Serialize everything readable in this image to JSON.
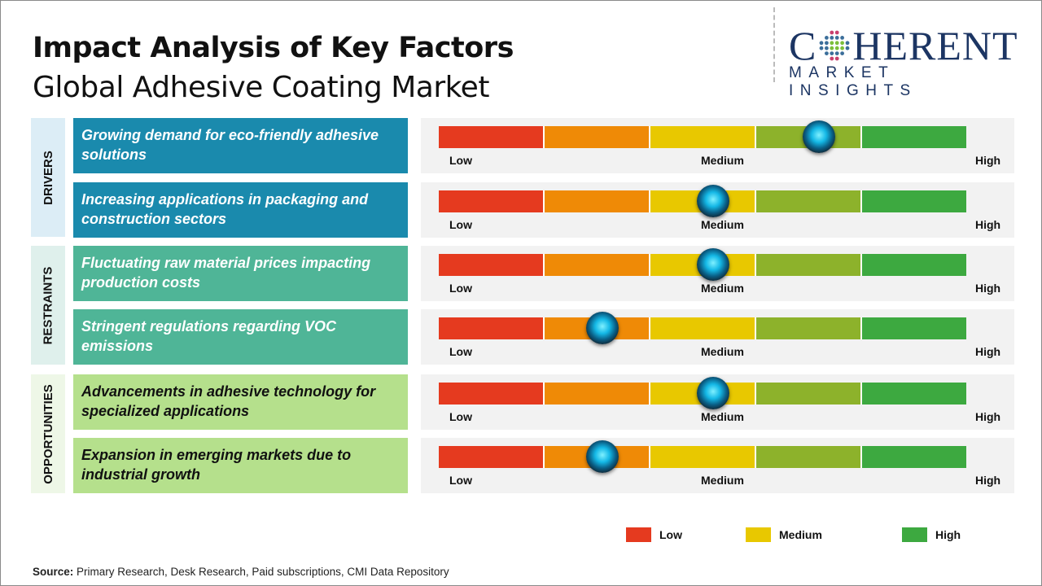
{
  "header": {
    "title": "Impact Analysis of Key Factors",
    "subtitle": "Global Adhesive Coating Market"
  },
  "logo": {
    "line1_pre": "C",
    "line1_post": "HERENT",
    "line2": "MARKET INSIGHTS"
  },
  "chart_data": {
    "type": "gauge",
    "scale_labels": [
      "Low",
      "Medium",
      "High"
    ],
    "segment_colors": [
      "#e53a1f",
      "#ef8a06",
      "#e8c800",
      "#8db22b",
      "#3da940"
    ],
    "categories": [
      {
        "name": "DRIVERS",
        "label_bg": "#dcedf6",
        "box_bg": "#1a8aad",
        "text_color": "#ffffff"
      },
      {
        "name": "RESTRAINTS",
        "label_bg": "#dff0ec",
        "box_bg": "#4fb597",
        "text_color": "#ffffff"
      },
      {
        "name": "OPPORTUNITIES",
        "label_bg": "#eef7e7",
        "box_bg": "#b5e08c",
        "text_color": "#111111"
      }
    ],
    "factors": [
      {
        "category": 0,
        "text": "Growing demand for eco-friendly adhesive solutions",
        "impact": 0.72
      },
      {
        "category": 0,
        "text": "Increasing applications in packaging and construction sectors",
        "impact": 0.52
      },
      {
        "category": 1,
        "text": "Fluctuating raw material prices impacting production costs",
        "impact": 0.52
      },
      {
        "category": 1,
        "text": "Stringent regulations regarding VOC emissions",
        "impact": 0.31
      },
      {
        "category": 2,
        "text": "Advancements in adhesive technology for specialized applications",
        "impact": 0.52
      },
      {
        "category": 2,
        "text": "Expansion in emerging markets due to industrial growth",
        "impact": 0.31
      }
    ],
    "legend": [
      {
        "label": "Low",
        "color": "#e53a1f"
      },
      {
        "label": "Medium",
        "color": "#e8c800"
      },
      {
        "label": "High",
        "color": "#3da940"
      }
    ]
  },
  "source": {
    "label": "Source:",
    "text": " Primary Research, Desk Research, Paid subscriptions, CMI Data Repository"
  }
}
